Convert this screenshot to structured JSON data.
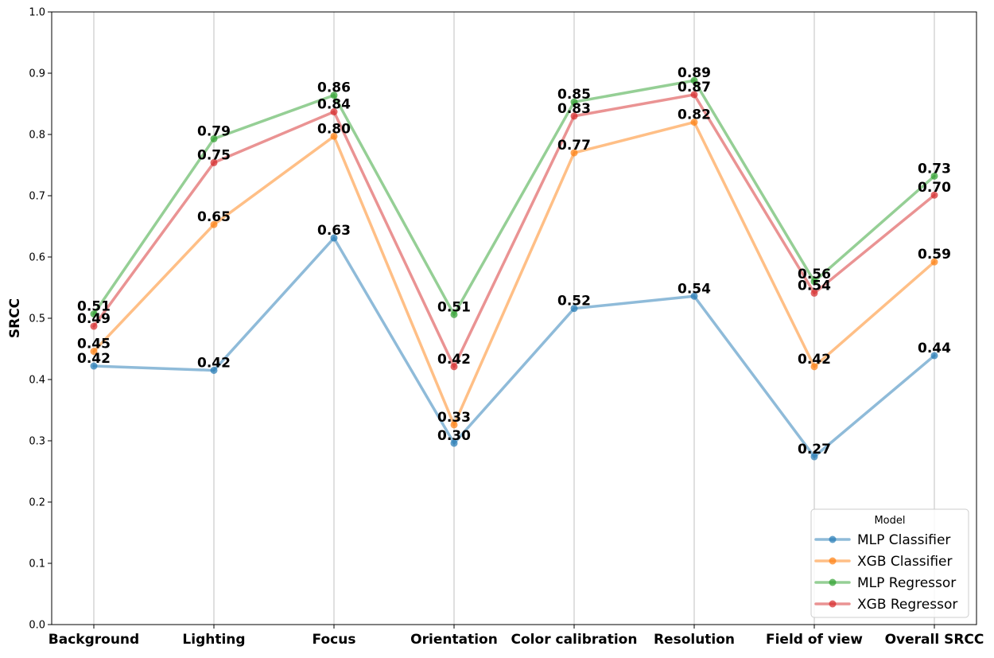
{
  "chart_data": {
    "type": "line",
    "title": "",
    "xlabel": "",
    "ylabel": "SRCC",
    "ylim": [
      0.0,
      1.0
    ],
    "yticks": [
      "0.0",
      "0.1",
      "0.2",
      "0.3",
      "0.4",
      "0.5",
      "0.6",
      "0.7",
      "0.8",
      "0.9",
      "1.0"
    ],
    "grid": "vertical gridlines at each category",
    "legend_placement": "lower-right",
    "legend_title": "Model",
    "categories": [
      "Background",
      "Lighting",
      "Focus",
      "Orientation",
      "Color calibration",
      "Resolution",
      "Field of view",
      "Overall SRCC"
    ],
    "series": [
      {
        "name": "MLP Classifier",
        "color": "#1f77b4",
        "values": [
          0.422,
          0.415,
          0.631,
          0.296,
          0.516,
          0.536,
          0.274,
          0.439
        ],
        "labels": [
          "0.42",
          "0.42",
          "0.63",
          "0.30",
          "0.52",
          "0.54",
          "0.27",
          "0.44"
        ]
      },
      {
        "name": "XGB Classifier",
        "color": "#ff7f0e",
        "values": [
          0.446,
          0.653,
          0.797,
          0.326,
          0.77,
          0.82,
          0.421,
          0.592
        ],
        "labels": [
          "0.45",
          "0.65",
          "0.80",
          "0.33",
          "0.77",
          "0.82",
          "0.42",
          "0.59"
        ]
      },
      {
        "name": "MLP Regressor",
        "color": "#2ca02c",
        "values": [
          0.507,
          0.793,
          0.864,
          0.506,
          0.853,
          0.888,
          0.56,
          0.732
        ],
        "labels": [
          "0.51",
          "0.79",
          "0.86",
          "0.51",
          "0.85",
          "0.89",
          "0.56",
          "0.73"
        ]
      },
      {
        "name": "XGB Regressor",
        "color": "#d62728",
        "values": [
          0.487,
          0.754,
          0.837,
          0.421,
          0.83,
          0.865,
          0.541,
          0.701
        ],
        "labels": [
          "0.49",
          "0.75",
          "0.84",
          "0.42",
          "0.83",
          "0.87",
          "0.54",
          "0.70"
        ]
      }
    ]
  }
}
